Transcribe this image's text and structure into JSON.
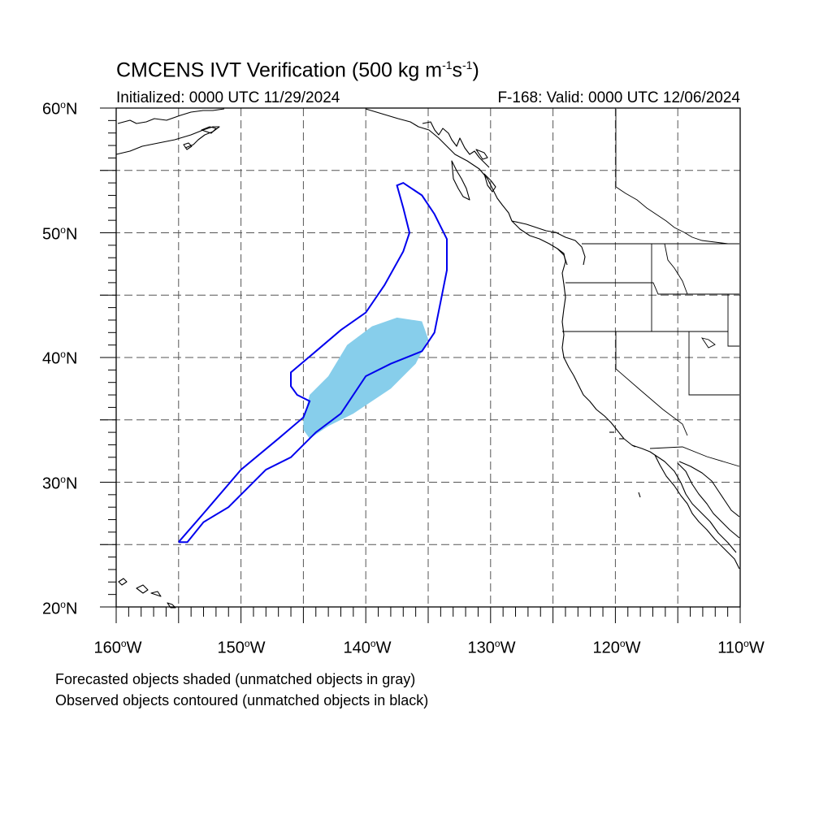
{
  "header": {
    "title_main": "CMCENS IVT Verification (500 kg m",
    "title_exp1": "-1",
    "title_mid": "s",
    "title_exp2": "-1",
    "title_end": ")",
    "initialized": "Initialized: 0000 UTC 11/29/2024",
    "valid": "F-168: Valid: 0000 UTC 12/06/2024"
  },
  "axes": {
    "degree_symbol": "o",
    "lat_labels": [
      {
        "value": "60",
        "hemi": "N"
      },
      {
        "value": "50",
        "hemi": "N"
      },
      {
        "value": "40",
        "hemi": "N"
      },
      {
        "value": "30",
        "hemi": "N"
      },
      {
        "value": "20",
        "hemi": "N"
      }
    ],
    "lon_labels": [
      {
        "value": "160",
        "hemi": "W"
      },
      {
        "value": "150",
        "hemi": "W"
      },
      {
        "value": "140",
        "hemi": "W"
      },
      {
        "value": "130",
        "hemi": "W"
      },
      {
        "value": "120",
        "hemi": "W"
      },
      {
        "value": "110",
        "hemi": "W"
      }
    ],
    "lon_range": [
      -160,
      -110
    ],
    "lat_range": [
      20,
      60
    ],
    "grid_interval_deg": 5
  },
  "legend": {
    "line1": "Forecasted objects shaded (unmatched objects in gray)",
    "line2": "Observed objects contoured (unmatched objects in black)"
  },
  "colors": {
    "forecast_fill": "#87ceeb",
    "observed_contour": "#0000ee",
    "coastline": "#000000",
    "grid": "#555555"
  },
  "map_data": {
    "forecast_object_matched": [
      [
        -145,
        35
      ],
      [
        -144.5,
        37
      ],
      [
        -143,
        38.5
      ],
      [
        -141.5,
        41
      ],
      [
        -139.5,
        42.5
      ],
      [
        -137.5,
        43.2
      ],
      [
        -135.5,
        42.9
      ],
      [
        -135,
        41.5
      ],
      [
        -136,
        39.5
      ],
      [
        -138,
        37.5
      ],
      [
        -141,
        35.5
      ],
      [
        -143,
        34.5
      ],
      [
        -144.5,
        33.5
      ],
      [
        -145,
        34.2
      ]
    ],
    "observed_object_matched": [
      [
        -155,
        25.2
      ],
      [
        -153,
        27.5
      ],
      [
        -150,
        31
      ],
      [
        -147,
        33.5
      ],
      [
        -145,
        35.2
      ],
      [
        -144.5,
        36.5
      ],
      [
        -145.5,
        37
      ],
      [
        -146,
        37.7
      ],
      [
        -146,
        38.8
      ],
      [
        -144,
        40.5
      ],
      [
        -142,
        42.2
      ],
      [
        -140,
        43.6
      ],
      [
        -138.5,
        45.8
      ],
      [
        -137,
        48.5
      ],
      [
        -136.5,
        50
      ],
      [
        -137,
        52
      ],
      [
        -137.5,
        53.8
      ],
      [
        -137,
        54
      ],
      [
        -135.5,
        53
      ],
      [
        -134.5,
        51.5
      ],
      [
        -133.5,
        49.5
      ],
      [
        -133.5,
        47
      ],
      [
        -134,
        44.5
      ],
      [
        -134.5,
        42
      ],
      [
        -135.5,
        40.5
      ],
      [
        -138,
        39.5
      ],
      [
        -140,
        38.5
      ],
      [
        -142,
        35.5
      ],
      [
        -144,
        34
      ],
      [
        -146,
        32
      ],
      [
        -148,
        31
      ],
      [
        -151,
        28
      ],
      [
        -153,
        26.8
      ],
      [
        -154.3,
        25.2
      ]
    ]
  }
}
